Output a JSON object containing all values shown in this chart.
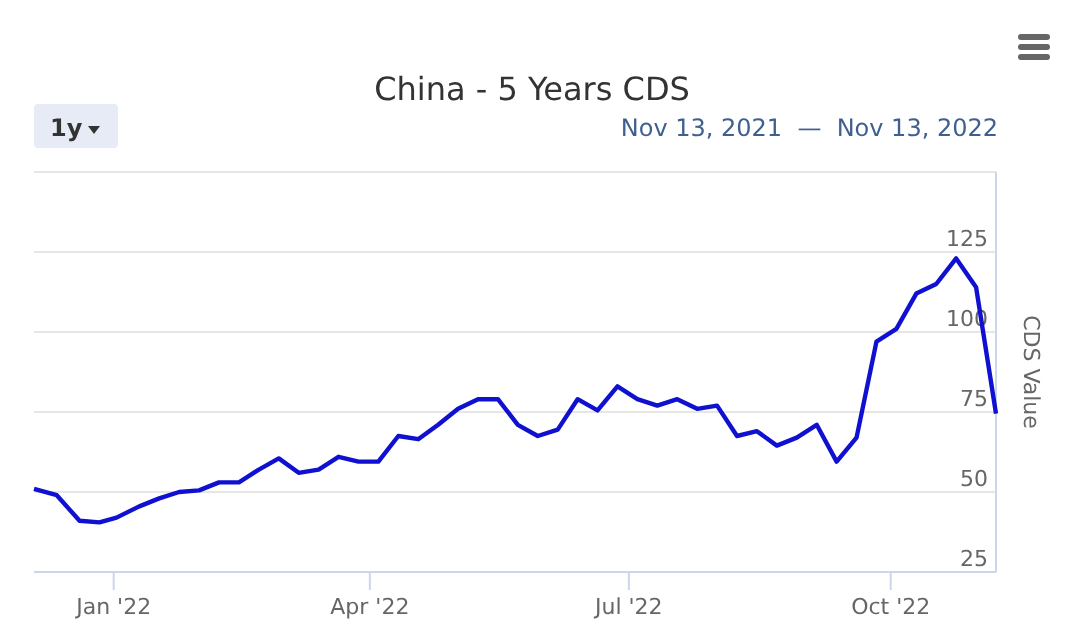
{
  "chart_data": {
    "type": "line",
    "title": "China - 5 Years CDS",
    "ylabel": "CDS Value",
    "annotations": [
      "1y",
      "Nov 13, 2021  —  Nov 13, 2022"
    ],
    "x": [
      "2021-12-04",
      "2021-12-12",
      "2021-12-20",
      "2021-12-27",
      "2022-01-02",
      "2022-01-10",
      "2022-01-17",
      "2022-01-24",
      "2022-01-31",
      "2022-02-07",
      "2022-02-14",
      "2022-02-21",
      "2022-02-28",
      "2022-03-07",
      "2022-03-14",
      "2022-03-21",
      "2022-03-28",
      "2022-04-04",
      "2022-04-11",
      "2022-04-18",
      "2022-04-25",
      "2022-05-02",
      "2022-05-09",
      "2022-05-16",
      "2022-05-23",
      "2022-05-30",
      "2022-06-06",
      "2022-06-13",
      "2022-06-20",
      "2022-06-27",
      "2022-07-04",
      "2022-07-11",
      "2022-07-18",
      "2022-07-25",
      "2022-08-01",
      "2022-08-08",
      "2022-08-15",
      "2022-08-22",
      "2022-08-29",
      "2022-09-05",
      "2022-09-12",
      "2022-09-19",
      "2022-09-26",
      "2022-10-03",
      "2022-10-10",
      "2022-10-17",
      "2022-10-24",
      "2022-10-31",
      "2022-11-07"
    ],
    "series": [
      {
        "color": "#1010d0",
        "values": [
          51,
          49,
          41,
          40.5,
          42,
          45.5,
          48,
          50,
          50.5,
          53,
          53,
          57,
          60.5,
          56,
          57,
          61,
          59.5,
          59.5,
          67.5,
          66.5,
          71,
          76,
          79,
          79,
          71,
          67.5,
          69.5,
          79,
          75.5,
          83,
          79,
          77,
          79,
          76,
          77,
          67.5,
          69,
          64.5,
          67,
          71,
          59.5,
          67,
          97,
          101,
          112,
          115,
          123,
          114,
          74.5
        ]
      }
    ],
    "xlim": [
      "2021-12-04",
      "2022-11-07"
    ],
    "xticks": [
      {
        "value": "2022-01-01",
        "label": "Jan '22"
      },
      {
        "value": "2022-04-01",
        "label": "Apr '22"
      },
      {
        "value": "2022-07-01",
        "label": "Jul '22"
      },
      {
        "value": "2022-10-01",
        "label": "Oct '22"
      }
    ],
    "ylim": [
      25,
      150
    ],
    "yticks": [
      25,
      50,
      75,
      100,
      125,
      {
        "value": 150,
        "label": null
      }
    ],
    "grid": "y",
    "marker": "none",
    "line_style": "solid"
  }
}
